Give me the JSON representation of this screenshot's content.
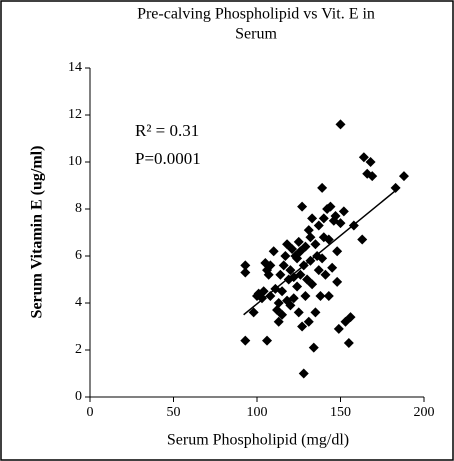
{
  "chart_data": {
    "type": "scatter",
    "title": [
      "Pre-calving Phospholipid vs Vit. E in",
      "Serum"
    ],
    "x_label": "Serum Phospholipid (mg/dl)",
    "y_label": "Serum Vitamin E (ug/ml)",
    "annotations": [
      "R² = 0.31",
      "P=0.0001"
    ],
    "xlim": [
      0,
      200
    ],
    "xticks": [
      0,
      50,
      100,
      150,
      200
    ],
    "ylim": [
      0,
      14
    ],
    "yticks": [
      0,
      2,
      4,
      6,
      8,
      10,
      12,
      14
    ],
    "color": "#000000",
    "x": [
      93,
      93,
      93,
      98,
      100,
      101,
      103,
      104,
      105,
      106,
      106,
      107,
      108,
      110,
      111,
      112,
      113,
      113,
      114,
      115,
      116,
      117,
      118,
      118,
      119,
      120,
      120,
      121,
      122,
      122,
      123,
      124,
      124,
      125,
      125,
      126,
      126,
      127,
      127,
      128,
      128,
      129,
      129,
      130,
      131,
      131,
      132,
      132,
      133,
      133,
      134,
      135,
      135,
      136,
      137,
      137,
      138,
      139,
      139,
      140,
      140,
      141,
      142,
      143,
      143,
      144,
      145,
      146,
      147,
      148,
      148,
      149,
      150,
      150,
      152,
      153,
      155,
      156,
      158,
      163,
      164,
      166,
      168,
      169,
      183,
      188,
      115,
      108
    ],
    "y": [
      5.6,
      5.3,
      2.4,
      3.6,
      4.3,
      4.4,
      4.2,
      4.5,
      5.7,
      5.4,
      2.4,
      5.2,
      4.3,
      6.2,
      4.6,
      3.7,
      4.0,
      3.2,
      5.2,
      4.5,
      5.6,
      6.0,
      4.1,
      6.5,
      5.0,
      3.9,
      5.4,
      6.3,
      4.2,
      5.1,
      6.0,
      4.7,
      5.9,
      3.6,
      6.6,
      6.2,
      5.2,
      8.1,
      3.0,
      1.0,
      5.6,
      4.3,
      6.4,
      5.0,
      3.2,
      7.1,
      5.8,
      6.8,
      7.6,
      4.8,
      2.1,
      6.5,
      3.6,
      6.0,
      7.3,
      5.4,
      4.3,
      8.9,
      5.9,
      7.6,
      6.8,
      5.2,
      8.0,
      4.3,
      6.7,
      8.1,
      5.5,
      7.5,
      7.7,
      6.2,
      4.9,
      2.9,
      7.4,
      11.6,
      7.9,
      3.2,
      2.3,
      3.4,
      7.3,
      6.7,
      10.2,
      9.5,
      10.0,
      9.4,
      8.9,
      9.4,
      3.5,
      5.6
    ],
    "trendline": {
      "x": [
        92,
        185
      ],
      "y": [
        3.5,
        8.9
      ]
    }
  }
}
